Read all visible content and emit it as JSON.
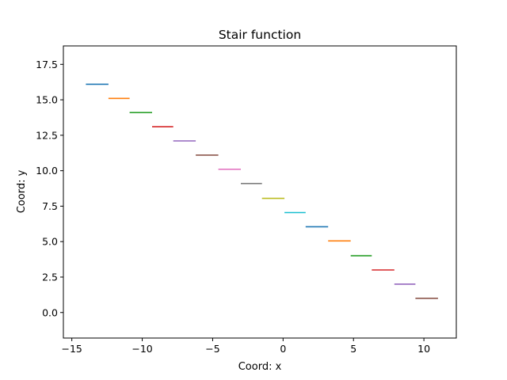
{
  "chart_data": {
    "type": "line",
    "title": "Stair function",
    "xlabel": "Coord: x",
    "ylabel": "Coord: y",
    "xlim": [
      -15.6,
      12.3
    ],
    "ylim": [
      -1.8,
      18.8
    ],
    "xticks": [
      -15,
      -10,
      -5,
      0,
      5,
      10
    ],
    "xtick_labels": [
      "−15",
      "−10",
      "−5",
      "0",
      "5",
      "10"
    ],
    "yticks": [
      0.0,
      2.5,
      5.0,
      7.5,
      10.0,
      12.5,
      15.0,
      17.5
    ],
    "ytick_labels": [
      "0.0",
      "2.5",
      "5.0",
      "7.5",
      "10.0",
      "12.5",
      "15.0",
      "17.5"
    ],
    "grid": false,
    "series": [
      {
        "x": [
          -14.0,
          -12.4
        ],
        "y": [
          16.1,
          16.1
        ],
        "color": "#1f77b4"
      },
      {
        "x": [
          -12.4,
          -10.9
        ],
        "y": [
          15.1,
          15.1
        ],
        "color": "#ff7f0e"
      },
      {
        "x": [
          -10.9,
          -9.3
        ],
        "y": [
          14.1,
          14.1
        ],
        "color": "#2ca02c"
      },
      {
        "x": [
          -9.3,
          -7.8
        ],
        "y": [
          13.1,
          13.1
        ],
        "color": "#d62728"
      },
      {
        "x": [
          -7.8,
          -6.2
        ],
        "y": [
          12.1,
          12.1
        ],
        "color": "#9467bd"
      },
      {
        "x": [
          -6.2,
          -4.6
        ],
        "y": [
          11.1,
          11.1
        ],
        "color": "#8c564b"
      },
      {
        "x": [
          -4.6,
          -3.0
        ],
        "y": [
          10.1,
          10.1
        ],
        "color": "#e377c2"
      },
      {
        "x": [
          -3.0,
          -1.5
        ],
        "y": [
          9.1,
          9.1
        ],
        "color": "#7f7f7f"
      },
      {
        "x": [
          -1.5,
          0.1
        ],
        "y": [
          8.05,
          8.05
        ],
        "color": "#bcbd22"
      },
      {
        "x": [
          0.1,
          1.6
        ],
        "y": [
          7.05,
          7.05
        ],
        "color": "#17becf"
      },
      {
        "x": [
          1.6,
          3.2
        ],
        "y": [
          6.05,
          6.05
        ],
        "color": "#1f77b4"
      },
      {
        "x": [
          3.2,
          4.8
        ],
        "y": [
          5.05,
          5.05
        ],
        "color": "#ff7f0e"
      },
      {
        "x": [
          4.8,
          6.3
        ],
        "y": [
          4.0,
          4.0
        ],
        "color": "#2ca02c"
      },
      {
        "x": [
          6.3,
          7.9
        ],
        "y": [
          3.0,
          3.0
        ],
        "color": "#d62728"
      },
      {
        "x": [
          7.9,
          9.4
        ],
        "y": [
          2.0,
          2.0
        ],
        "color": "#9467bd"
      },
      {
        "x": [
          9.4,
          11.0
        ],
        "y": [
          1.0,
          1.0
        ],
        "color": "#8c564b"
      }
    ]
  }
}
